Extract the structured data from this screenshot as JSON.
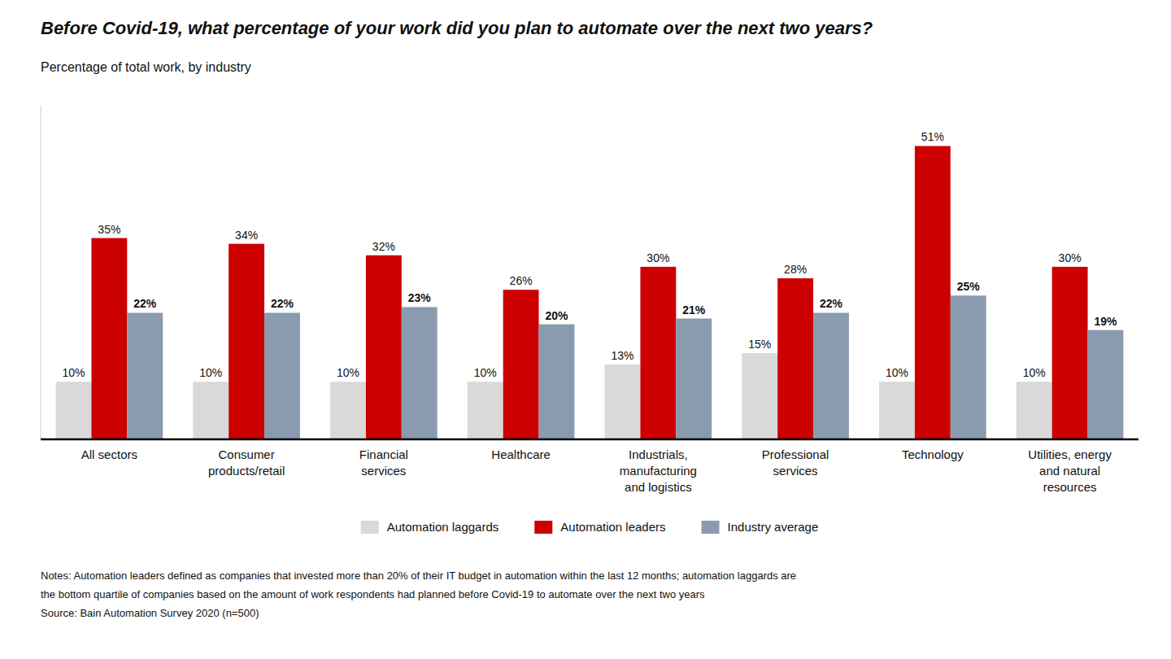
{
  "chart_data": {
    "type": "bar",
    "title": "Before Covid-19, what percentage of your work did you plan to automate over the next two years?",
    "subtitle": "Percentage of total work, by industry",
    "categories": [
      "All sectors",
      "Consumer\nproducts/retail",
      "Financial\nservices",
      "Healthcare",
      "Industrials,\nmanufacturing\nand logistics",
      "Professional\nservices",
      "Technology",
      "Utilities, energy\nand natural\nresources"
    ],
    "series": [
      {
        "name": "Automation laggards",
        "color": "#d9d9d9",
        "values": [
          10,
          10,
          10,
          10,
          13,
          15,
          10,
          10
        ],
        "value_labels": [
          "10%",
          "10%",
          "10%",
          "10%",
          "13%",
          "15%",
          "10%",
          "10%"
        ]
      },
      {
        "name": "Automation leaders",
        "color": "#cc0000",
        "values": [
          35,
          34,
          32,
          26,
          30,
          28,
          51,
          30
        ],
        "value_labels": [
          "35%",
          "34%",
          "32%",
          "26%",
          "30%",
          "28%",
          "51%",
          "30%"
        ]
      },
      {
        "name": "Industry average",
        "color": "#8a9bb0",
        "values": [
          22,
          22,
          23,
          20,
          21,
          22,
          25,
          19
        ],
        "value_labels": [
          "22%",
          "22%",
          "23%",
          "20%",
          "21%",
          "22%",
          "25%",
          "19%"
        ]
      }
    ],
    "ylim": [
      0,
      58
    ],
    "grid": false,
    "legend": "bottom",
    "data_labels": true,
    "tick_labels": "x",
    "annotations": [
      "Notes: Automation leaders defined as companies that invested more than 20% of their IT budget in automation within the last 12 months; automation laggards are",
      "the bottom quartile of companies based on the amount of work respondents had planned before Covid-19 to automate over the next two years",
      "Source: Bain Automation Survey 2020 (n=500)"
    ]
  }
}
